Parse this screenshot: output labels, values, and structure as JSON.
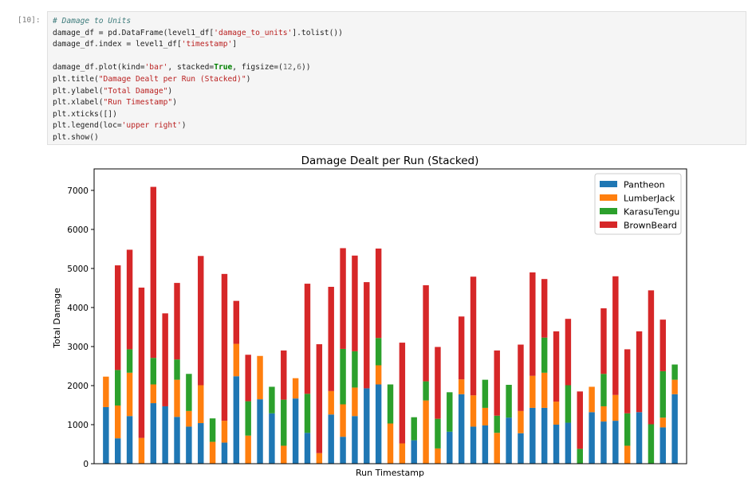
{
  "cell": {
    "prompt": "[10]:",
    "code_lines": [
      [
        [
          "c-com",
          "# Damage to Units"
        ]
      ],
      [
        [
          "",
          "damage_df = pd.DataFrame(level1_df["
        ],
        [
          "c-str",
          "'damage_to_units'"
        ],
        [
          "",
          "].tolist())"
        ]
      ],
      [
        [
          "",
          "damage_df.index = level1_df["
        ],
        [
          "c-str",
          "'timestamp'"
        ],
        [
          "",
          "]"
        ]
      ],
      [
        [
          "",
          ""
        ]
      ],
      [
        [
          "",
          "damage_df.plot(kind="
        ],
        [
          "c-str",
          "'bar'"
        ],
        [
          "",
          ", stacked="
        ],
        [
          "c-kw",
          "True"
        ],
        [
          "",
          ", figsize=("
        ],
        [
          "c-num",
          "12"
        ],
        [
          "",
          ","
        ],
        [
          "c-num",
          "6"
        ],
        [
          "",
          "))"
        ]
      ],
      [
        [
          "",
          "plt.title("
        ],
        [
          "c-str",
          "\"Damage Dealt per Run (Stacked)\""
        ],
        [
          "",
          ")"
        ]
      ],
      [
        [
          "",
          "plt.ylabel("
        ],
        [
          "c-str",
          "\"Total Damage\""
        ],
        [
          "",
          ")"
        ]
      ],
      [
        [
          "",
          "plt.xlabel("
        ],
        [
          "c-str",
          "\"Run Timestamp\""
        ],
        [
          "",
          ")"
        ]
      ],
      [
        [
          "",
          "plt.xticks([])"
        ]
      ],
      [
        [
          "",
          "plt.legend(loc="
        ],
        [
          "c-str",
          "'upper right'"
        ],
        [
          "",
          ")"
        ]
      ],
      [
        [
          "",
          "plt.show()"
        ]
      ]
    ]
  },
  "chart_data": {
    "type": "bar",
    "stacked": true,
    "title": "Damage Dealt per Run (Stacked)",
    "xlabel": "Run Timestamp",
    "ylabel": "Total Damage",
    "ylim": [
      0,
      7550
    ],
    "yticks": [
      0,
      1000,
      2000,
      3000,
      4000,
      5000,
      6000,
      7000
    ],
    "xticks_shown": false,
    "legend_position": "upper-right",
    "series": [
      {
        "name": "Pantheon",
        "color": "#1f77b4",
        "values": [
          1450,
          650,
          1220,
          0,
          1550,
          1470,
          1200,
          950,
          1040,
          0,
          540,
          2240,
          0,
          1650,
          1290,
          0,
          1670,
          790,
          0,
          1260,
          690,
          1220,
          1930,
          2030,
          0,
          0,
          600,
          0,
          0,
          820,
          1780,
          950,
          980,
          0,
          1180,
          780,
          1430,
          1430,
          1000,
          1050,
          0,
          1320,
          1080,
          1100,
          0,
          1320,
          0,
          930,
          1780
        ]
      },
      {
        "name": "LumberJack",
        "color": "#ff7f0e",
        "values": [
          780,
          840,
          1110,
          660,
          480,
          0,
          950,
          400,
          970,
          560,
          560,
          830,
          720,
          1110,
          0,
          460,
          520,
          0,
          270,
          600,
          830,
          730,
          0,
          490,
          1030,
          520,
          0,
          1620,
          390,
          0,
          380,
          800,
          450,
          790,
          0,
          570,
          820,
          900,
          590,
          0,
          0,
          650,
          390,
          660,
          460,
          0,
          0,
          250,
          370
        ]
      },
      {
        "name": "KarasuTengu",
        "color": "#2ca02c",
        "values": [
          0,
          910,
          600,
          0,
          680,
          0,
          520,
          950,
          0,
          600,
          0,
          0,
          880,
          0,
          680,
          1180,
          0,
          1000,
          0,
          0,
          1420,
          930,
          0,
          700,
          1000,
          0,
          590,
          490,
          760,
          1010,
          0,
          0,
          720,
          440,
          840,
          0,
          0,
          900,
          0,
          960,
          380,
          0,
          830,
          0,
          830,
          0,
          1010,
          1190,
          390
        ]
      },
      {
        "name": "BrownBeard",
        "color": "#d62728",
        "values": [
          0,
          2680,
          2550,
          3850,
          4380,
          2380,
          1960,
          0,
          3310,
          0,
          3760,
          1100,
          1190,
          0,
          0,
          1260,
          0,
          2820,
          2790,
          2670,
          2580,
          2450,
          2720,
          2290,
          0,
          2580,
          0,
          2460,
          1840,
          0,
          1610,
          3040,
          0,
          1670,
          0,
          1700,
          2650,
          1500,
          1800,
          1700,
          1470,
          0,
          1680,
          3040,
          1640,
          2070,
          3430,
          1320,
          0
        ]
      }
    ]
  }
}
